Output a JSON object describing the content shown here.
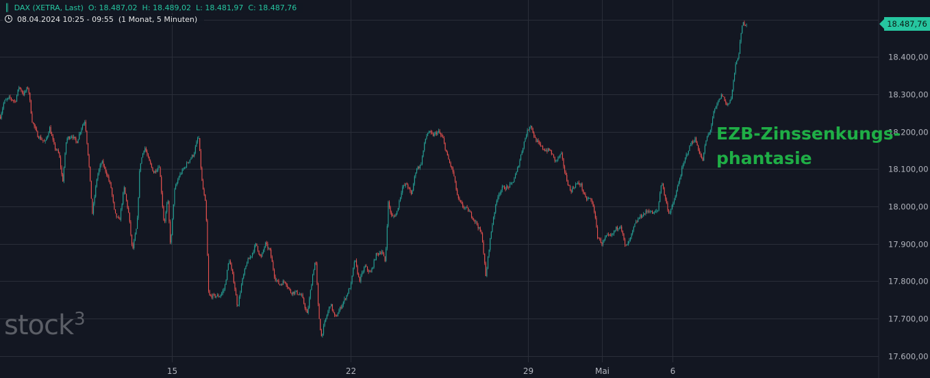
{
  "header": {
    "symbol": "DAX (XETRA, Last)",
    "open": "O: 18.487,02",
    "high": "H: 18.489,02",
    "low": "L: 18.481,97",
    "close": "C: 18.487,76",
    "range": "08.04.2024 10:25 - 09:55",
    "interval": "(1 Monat, 5 Minuten)"
  },
  "annotation": {
    "line1": "EZB-Zinssenkungs-",
    "line2": "phantasie"
  },
  "logo": {
    "text": "stock",
    "sup": "3"
  },
  "last_price": "18.487,76",
  "colors": {
    "up": "#26a69a",
    "down": "#ef5350",
    "accent": "#26c6a0",
    "annotation": "#1fae46",
    "background": "#131722"
  },
  "chart_data": {
    "type": "candlestick",
    "title": "",
    "xlabel": "",
    "ylabel": "",
    "ylim": [
      17550,
      18510
    ],
    "grid": true,
    "y_ticks": [
      "18.500,00",
      "18.400,00",
      "18.300,00",
      "18.200,00",
      "18.100,00",
      "18.000,00",
      "17.900,00",
      "17.800,00",
      "17.700,00",
      "17.600,00"
    ],
    "y_tick_values": [
      18500,
      18400,
      18300,
      18200,
      18100,
      18000,
      17900,
      17800,
      17700,
      17600
    ],
    "x_ticks": [
      "15",
      "22",
      "29",
      "Mai",
      "6"
    ],
    "x_ticks_pos": [
      0.185,
      0.377,
      0.568,
      0.647,
      0.723
    ],
    "price_path": [
      [
        0.0,
        18240
      ],
      [
        0.004,
        18280
      ],
      [
        0.01,
        18290
      ],
      [
        0.016,
        18280
      ],
      [
        0.02,
        18320
      ],
      [
        0.025,
        18300
      ],
      [
        0.03,
        18320
      ],
      [
        0.034,
        18230
      ],
      [
        0.04,
        18190
      ],
      [
        0.048,
        18170
      ],
      [
        0.053,
        18210
      ],
      [
        0.058,
        18160
      ],
      [
        0.063,
        18140
      ],
      [
        0.067,
        18065
      ],
      [
        0.071,
        18180
      ],
      [
        0.077,
        18190
      ],
      [
        0.082,
        18170
      ],
      [
        0.087,
        18210
      ],
      [
        0.091,
        18230
      ],
      [
        0.095,
        18120
      ],
      [
        0.099,
        17980
      ],
      [
        0.104,
        18080
      ],
      [
        0.109,
        18120
      ],
      [
        0.114,
        18090
      ],
      [
        0.119,
        18050
      ],
      [
        0.123,
        17980
      ],
      [
        0.128,
        17960
      ],
      [
        0.133,
        18050
      ],
      [
        0.138,
        17980
      ],
      [
        0.142,
        17880
      ],
      [
        0.147,
        17950
      ],
      [
        0.15,
        18110
      ],
      [
        0.155,
        18160
      ],
      [
        0.16,
        18120
      ],
      [
        0.165,
        18090
      ],
      [
        0.171,
        18110
      ],
      [
        0.176,
        17950
      ],
      [
        0.18,
        18020
      ],
      [
        0.183,
        17890
      ],
      [
        0.187,
        18040
      ],
      [
        0.192,
        18080
      ],
      [
        0.197,
        18100
      ],
      [
        0.202,
        18120
      ],
      [
        0.208,
        18140
      ],
      [
        0.213,
        18190
      ],
      [
        0.217,
        18060
      ],
      [
        0.221,
        18000
      ],
      [
        0.224,
        17760
      ],
      [
        0.23,
        17760
      ],
      [
        0.236,
        17760
      ],
      [
        0.241,
        17780
      ],
      [
        0.246,
        17860
      ],
      [
        0.251,
        17800
      ],
      [
        0.255,
        17730
      ],
      [
        0.26,
        17800
      ],
      [
        0.265,
        17850
      ],
      [
        0.27,
        17870
      ],
      [
        0.275,
        17900
      ],
      [
        0.28,
        17860
      ],
      [
        0.285,
        17900
      ],
      [
        0.29,
        17880
      ],
      [
        0.295,
        17810
      ],
      [
        0.3,
        17790
      ],
      [
        0.306,
        17800
      ],
      [
        0.312,
        17770
      ],
      [
        0.318,
        17770
      ],
      [
        0.324,
        17760
      ],
      [
        0.33,
        17710
      ],
      [
        0.336,
        17820
      ],
      [
        0.339,
        17860
      ],
      [
        0.342,
        17720
      ],
      [
        0.345,
        17650
      ],
      [
        0.35,
        17700
      ],
      [
        0.355,
        17740
      ],
      [
        0.36,
        17700
      ],
      [
        0.366,
        17730
      ],
      [
        0.372,
        17760
      ],
      [
        0.377,
        17790
      ],
      [
        0.381,
        17860
      ],
      [
        0.386,
        17800
      ],
      [
        0.392,
        17840
      ],
      [
        0.398,
        17820
      ],
      [
        0.404,
        17870
      ],
      [
        0.41,
        17880
      ],
      [
        0.414,
        17850
      ],
      [
        0.417,
        18010
      ],
      [
        0.421,
        17970
      ],
      [
        0.426,
        17980
      ],
      [
        0.432,
        18050
      ],
      [
        0.437,
        18060
      ],
      [
        0.442,
        18030
      ],
      [
        0.447,
        18100
      ],
      [
        0.452,
        18110
      ],
      [
        0.457,
        18180
      ],
      [
        0.46,
        18200
      ],
      [
        0.465,
        18190
      ],
      [
        0.471,
        18200
      ],
      [
        0.476,
        18180
      ],
      [
        0.481,
        18130
      ],
      [
        0.487,
        18090
      ],
      [
        0.492,
        18020
      ],
      [
        0.497,
        18000
      ],
      [
        0.503,
        17990
      ],
      [
        0.508,
        17970
      ],
      [
        0.513,
        17950
      ],
      [
        0.518,
        17920
      ],
      [
        0.522,
        17810
      ],
      [
        0.526,
        17900
      ],
      [
        0.53,
        17970
      ],
      [
        0.535,
        18030
      ],
      [
        0.54,
        18050
      ],
      [
        0.545,
        18050
      ],
      [
        0.55,
        18060
      ],
      [
        0.555,
        18090
      ],
      [
        0.56,
        18140
      ],
      [
        0.565,
        18190
      ],
      [
        0.57,
        18220
      ],
      [
        0.575,
        18180
      ],
      [
        0.581,
        18160
      ],
      [
        0.586,
        18150
      ],
      [
        0.591,
        18150
      ],
      [
        0.597,
        18120
      ],
      [
        0.603,
        18140
      ],
      [
        0.608,
        18080
      ],
      [
        0.613,
        18040
      ],
      [
        0.619,
        18060
      ],
      [
        0.624,
        18060
      ],
      [
        0.629,
        18020
      ],
      [
        0.634,
        18020
      ],
      [
        0.638,
        18000
      ],
      [
        0.642,
        17920
      ],
      [
        0.647,
        17900
      ],
      [
        0.652,
        17920
      ],
      [
        0.657,
        17920
      ],
      [
        0.662,
        17940
      ],
      [
        0.667,
        17950
      ],
      [
        0.672,
        17890
      ],
      [
        0.677,
        17910
      ],
      [
        0.682,
        17950
      ],
      [
        0.687,
        17970
      ],
      [
        0.692,
        17980
      ],
      [
        0.697,
        17990
      ],
      [
        0.702,
        17980
      ],
      [
        0.707,
        17990
      ],
      [
        0.711,
        18070
      ],
      [
        0.715,
        18020
      ],
      [
        0.719,
        17980
      ],
      [
        0.724,
        18010
      ],
      [
        0.729,
        18060
      ],
      [
        0.733,
        18100
      ],
      [
        0.738,
        18140
      ],
      [
        0.743,
        18170
      ],
      [
        0.747,
        18180
      ],
      [
        0.751,
        18150
      ],
      [
        0.755,
        18120
      ],
      [
        0.759,
        18180
      ],
      [
        0.763,
        18200
      ],
      [
        0.767,
        18250
      ],
      [
        0.772,
        18280
      ],
      [
        0.776,
        18300
      ],
      [
        0.781,
        18270
      ],
      [
        0.786,
        18290
      ],
      [
        0.79,
        18370
      ],
      [
        0.794,
        18410
      ],
      [
        0.798,
        18490
      ],
      [
        0.802,
        18488
      ]
    ]
  }
}
